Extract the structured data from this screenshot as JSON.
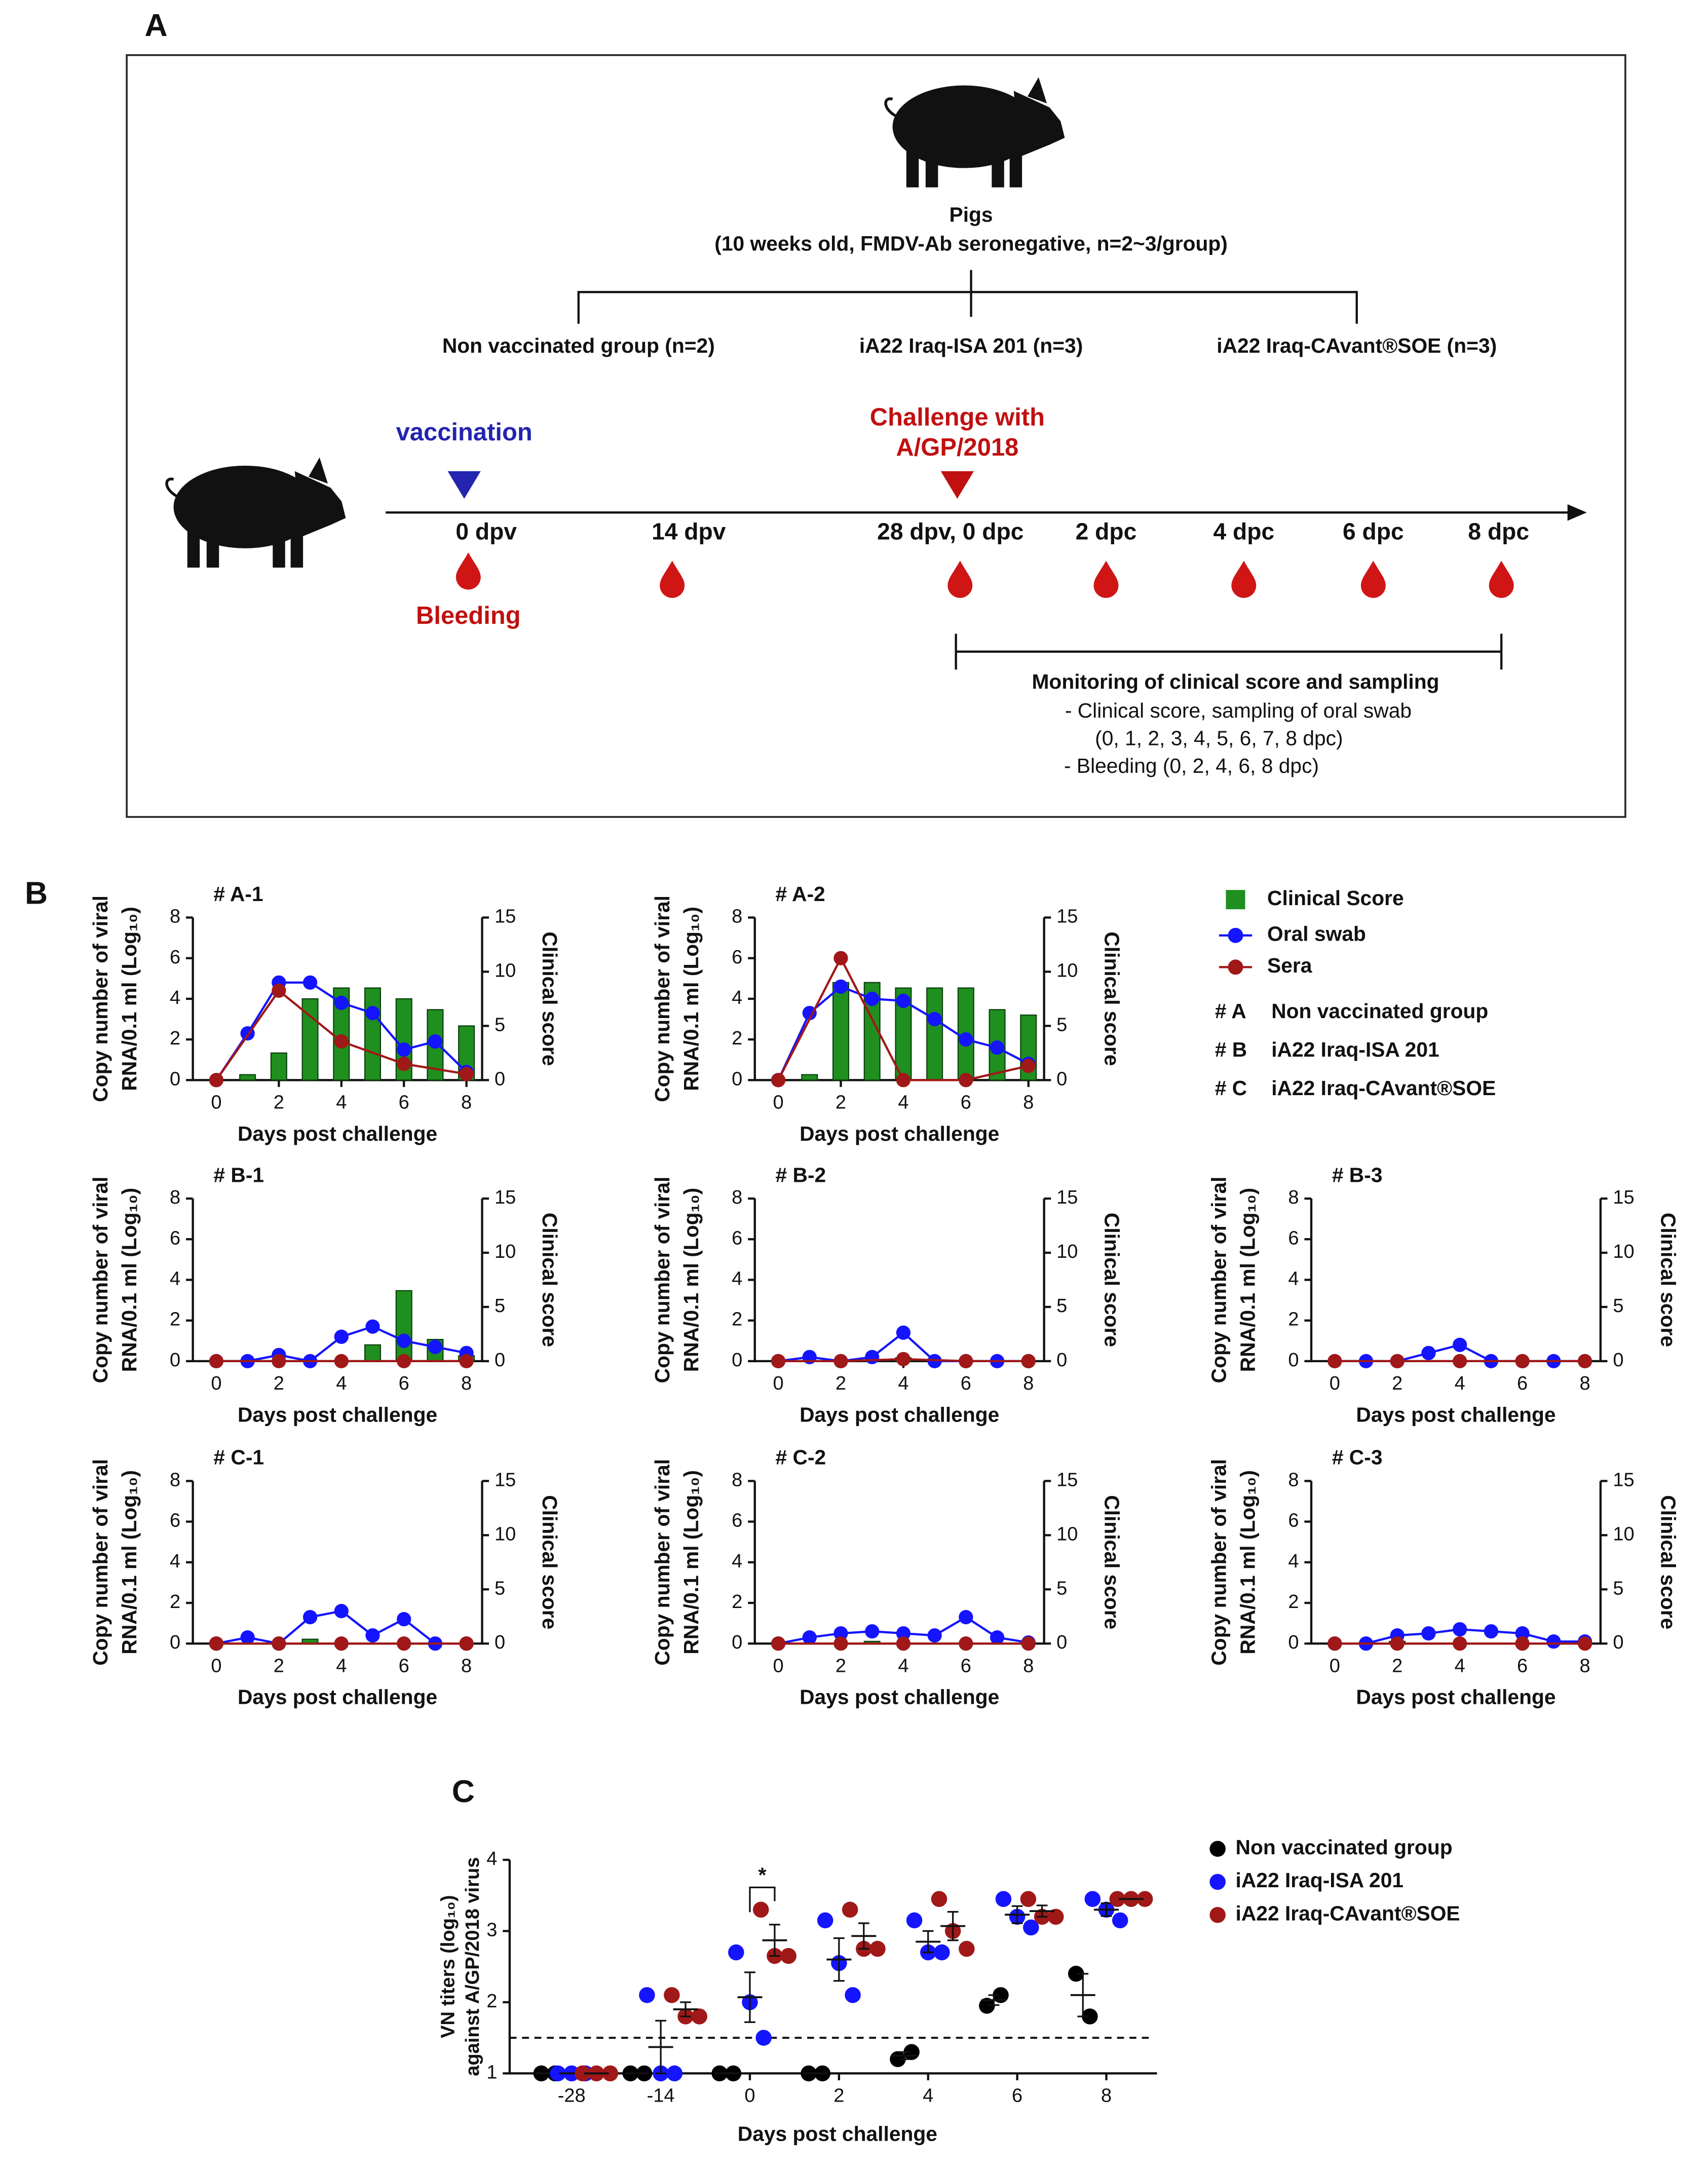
{
  "diagram": {
    "panel_labels": [
      "A",
      "B",
      "C"
    ],
    "pigs": {
      "title": "Pigs",
      "subtitle": "(10 weeks old, FMDV-Ab seronegative, n=2~3/group)"
    },
    "groups": [
      "Non vaccinated  group (n=2)",
      "iA22 Iraq-ISA 201 (n=3)",
      "iA22 Iraq-CAvant®SOE (n=3)"
    ],
    "vaccination": "vaccination",
    "challenge": [
      "Challenge with",
      "A/GP/2018"
    ],
    "timeline": [
      "0 dpv",
      "14 dpv",
      "28 dpv, 0 dpc",
      "2 dpc",
      "4 dpc",
      "6 dpc",
      "8 dpc"
    ],
    "bleeding": "Bleeding",
    "monitoring": {
      "title": "Monitoring of clinical  score and sampling",
      "lines": [
        "- Clinical score, sampling of oral swab",
        "(0, 1, 2, 3, 4, 5, 6, 7, 8 dpc)",
        "- Bleeding (0, 2, 4, 6, 8 dpc)"
      ]
    }
  },
  "chart_data": [
    {
      "type": "bar-line",
      "x_label": "Days post challenge",
      "y_label": [
        "Copy number of viral",
        "RNA/0.1 ml (Log₁₀)"
      ],
      "y2_label": "Clinical  score",
      "xlim": [
        -0.75,
        8.5
      ],
      "xticks": [
        0,
        2,
        4,
        6,
        8
      ],
      "ylim": [
        0,
        8
      ],
      "yticks": [
        0,
        2,
        4,
        6,
        8
      ],
      "y2lim": [
        0,
        15
      ],
      "y2ticks": [
        0,
        5,
        10,
        15
      ],
      "series": [
        {
          "name": "Clinical  Score",
          "color": "#1f8f1f",
          "kind": "bar",
          "axis": "y2",
          "x": [
            0,
            1,
            2,
            3,
            4,
            5,
            6,
            7,
            8
          ]
        },
        {
          "name": "Oral swab",
          "color": "#1414ff",
          "kind": "line",
          "x": [
            0,
            1,
            2,
            3,
            4,
            5,
            6,
            7,
            8
          ]
        },
        {
          "name": "Sera",
          "color": "#a01818",
          "kind": "line",
          "x": [
            0,
            2,
            4,
            6,
            8
          ]
        }
      ],
      "groups": [
        {
          "key": "# A",
          "name": "Non vaccinated  group"
        },
        {
          "key": "# B",
          "name": "iA22 Iraq-ISA 201"
        },
        {
          "key": "# C",
          "name": "iA22 Iraq-CAvant®SOE"
        }
      ],
      "panels": [
        {
          "title": "# A-1",
          "values": [
            [
              0,
              0.5,
              2.5,
              7.5,
              8.5,
              8.5,
              7.5,
              6.5,
              5
            ],
            [
              0,
              2.3,
              4.8,
              4.8,
              3.8,
              3.3,
              1.5,
              1.9,
              0.4
            ],
            [
              0,
              4.4,
              1.9,
              0.8,
              0.3
            ]
          ]
        },
        {
          "title": "# A-2",
          "values": [
            [
              0,
              0.5,
              9,
              9,
              8.5,
              8.5,
              8.5,
              6.5,
              6
            ],
            [
              0,
              3.3,
              4.6,
              4.0,
              3.9,
              3.0,
              2.0,
              1.6,
              0.8
            ],
            [
              0,
              6,
              0,
              0,
              0.7
            ]
          ]
        },
        {
          "title": "# B-1",
          "values": [
            [
              0,
              0,
              0,
              0,
              0,
              1.5,
              6.5,
              2,
              0.5
            ],
            [
              0,
              0,
              0.3,
              0,
              1.2,
              1.7,
              1.0,
              0.7,
              0.4
            ],
            [
              0,
              0,
              0,
              0,
              0
            ]
          ]
        },
        {
          "title": "# B-2",
          "values": [
            [
              0,
              0,
              0,
              0,
              0.3,
              0,
              0,
              0,
              0
            ],
            [
              0,
              0.2,
              0,
              0.2,
              1.4,
              0,
              0,
              0,
              0
            ],
            [
              0,
              0,
              0.1,
              0,
              0
            ]
          ]
        },
        {
          "title": "# B-3",
          "values": [
            [
              0,
              0,
              0,
              0,
              0,
              0,
              0,
              0,
              0
            ],
            [
              0,
              0,
              0,
              0.4,
              0.8,
              0,
              0,
              0,
              0
            ],
            [
              0,
              0,
              0,
              0,
              0
            ]
          ]
        },
        {
          "title": "# C-1",
          "values": [
            [
              0,
              0,
              0,
              0.4,
              0,
              0,
              0,
              0,
              0
            ],
            [
              0,
              0.3,
              0,
              1.3,
              1.6,
              0.4,
              1.2,
              0,
              0
            ],
            [
              0,
              0,
              0,
              0,
              0
            ]
          ]
        },
        {
          "title": "# C-2",
          "values": [
            [
              0,
              0,
              0,
              0.2,
              0,
              0,
              0,
              0,
              0
            ],
            [
              0,
              0.3,
              0.5,
              0.6,
              0.5,
              0.4,
              1.3,
              0.3,
              0.05
            ],
            [
              0,
              0,
              0,
              0,
              0
            ]
          ]
        },
        {
          "title": "# C-3",
          "values": [
            [
              0,
              0,
              0.2,
              0,
              0,
              0,
              0,
              0,
              0
            ],
            [
              0,
              0,
              0.4,
              0.5,
              0.7,
              0.6,
              0.5,
              0.1,
              0.1
            ],
            [
              0,
              0,
              0,
              0,
              0
            ]
          ]
        }
      ]
    },
    {
      "type": "scatter",
      "x_label": "Days post challenge",
      "y_label": [
        "VN titers (log₁₀)",
        "against A/GP/2018 virus"
      ],
      "categories": [
        -28,
        -14,
        0,
        2,
        4,
        6,
        8
      ],
      "ylim": [
        1,
        4
      ],
      "yticks": [
        1,
        2,
        3,
        4
      ],
      "reference_line": 1.5,
      "annotations": [
        {
          "text": "*",
          "x": 0
        }
      ],
      "series": [
        {
          "name": "Non vaccinated group",
          "color": "#000000",
          "values": [
            [
              1,
              1
            ],
            [
              1,
              1
            ],
            [
              1,
              1
            ],
            [
              1,
              1
            ],
            [
              1.2,
              1.3
            ],
            [
              1.95,
              2.1
            ],
            [
              2.4,
              1.8
            ]
          ],
          "means": [
            1,
            1,
            1,
            1,
            1.25,
            2.03,
            2.1
          ],
          "sems": [
            0,
            0,
            0,
            0,
            0.05,
            0.07,
            0.3
          ]
        },
        {
          "name": "iA22 Iraq-ISA 201",
          "color": "#1414ff",
          "values": [
            [
              1,
              1,
              1
            ],
            [
              2.1,
              1,
              1
            ],
            [
              2.7,
              2.0,
              1.5
            ],
            [
              3.15,
              2.55,
              2.1
            ],
            [
              3.15,
              2.7,
              2.7
            ],
            [
              3.45,
              3.2,
              3.05
            ],
            [
              3.45,
              3.3,
              3.15
            ]
          ],
          "means": [
            1,
            1.37,
            2.07,
            2.6,
            2.85,
            3.23,
            3.3
          ],
          "sems": [
            0,
            0.37,
            0.35,
            0.3,
            0.15,
            0.12,
            0.09
          ]
        },
        {
          "name": "iA22 Iraq-CAvant®SOE",
          "color": "#a01818",
          "values": [
            [
              1,
              1,
              1
            ],
            [
              2.1,
              1.8,
              1.8
            ],
            [
              3.3,
              2.65,
              2.65
            ],
            [
              3.3,
              2.75,
              2.75
            ],
            [
              3.45,
              3.0,
              2.75
            ],
            [
              3.45,
              3.2,
              3.2
            ],
            [
              3.45,
              3.45,
              3.45
            ]
          ],
          "means": [
            1,
            1.9,
            2.87,
            2.93,
            3.07,
            3.28,
            3.45
          ],
          "sems": [
            0,
            0.1,
            0.22,
            0.18,
            0.2,
            0.08,
            0
          ]
        }
      ]
    }
  ]
}
